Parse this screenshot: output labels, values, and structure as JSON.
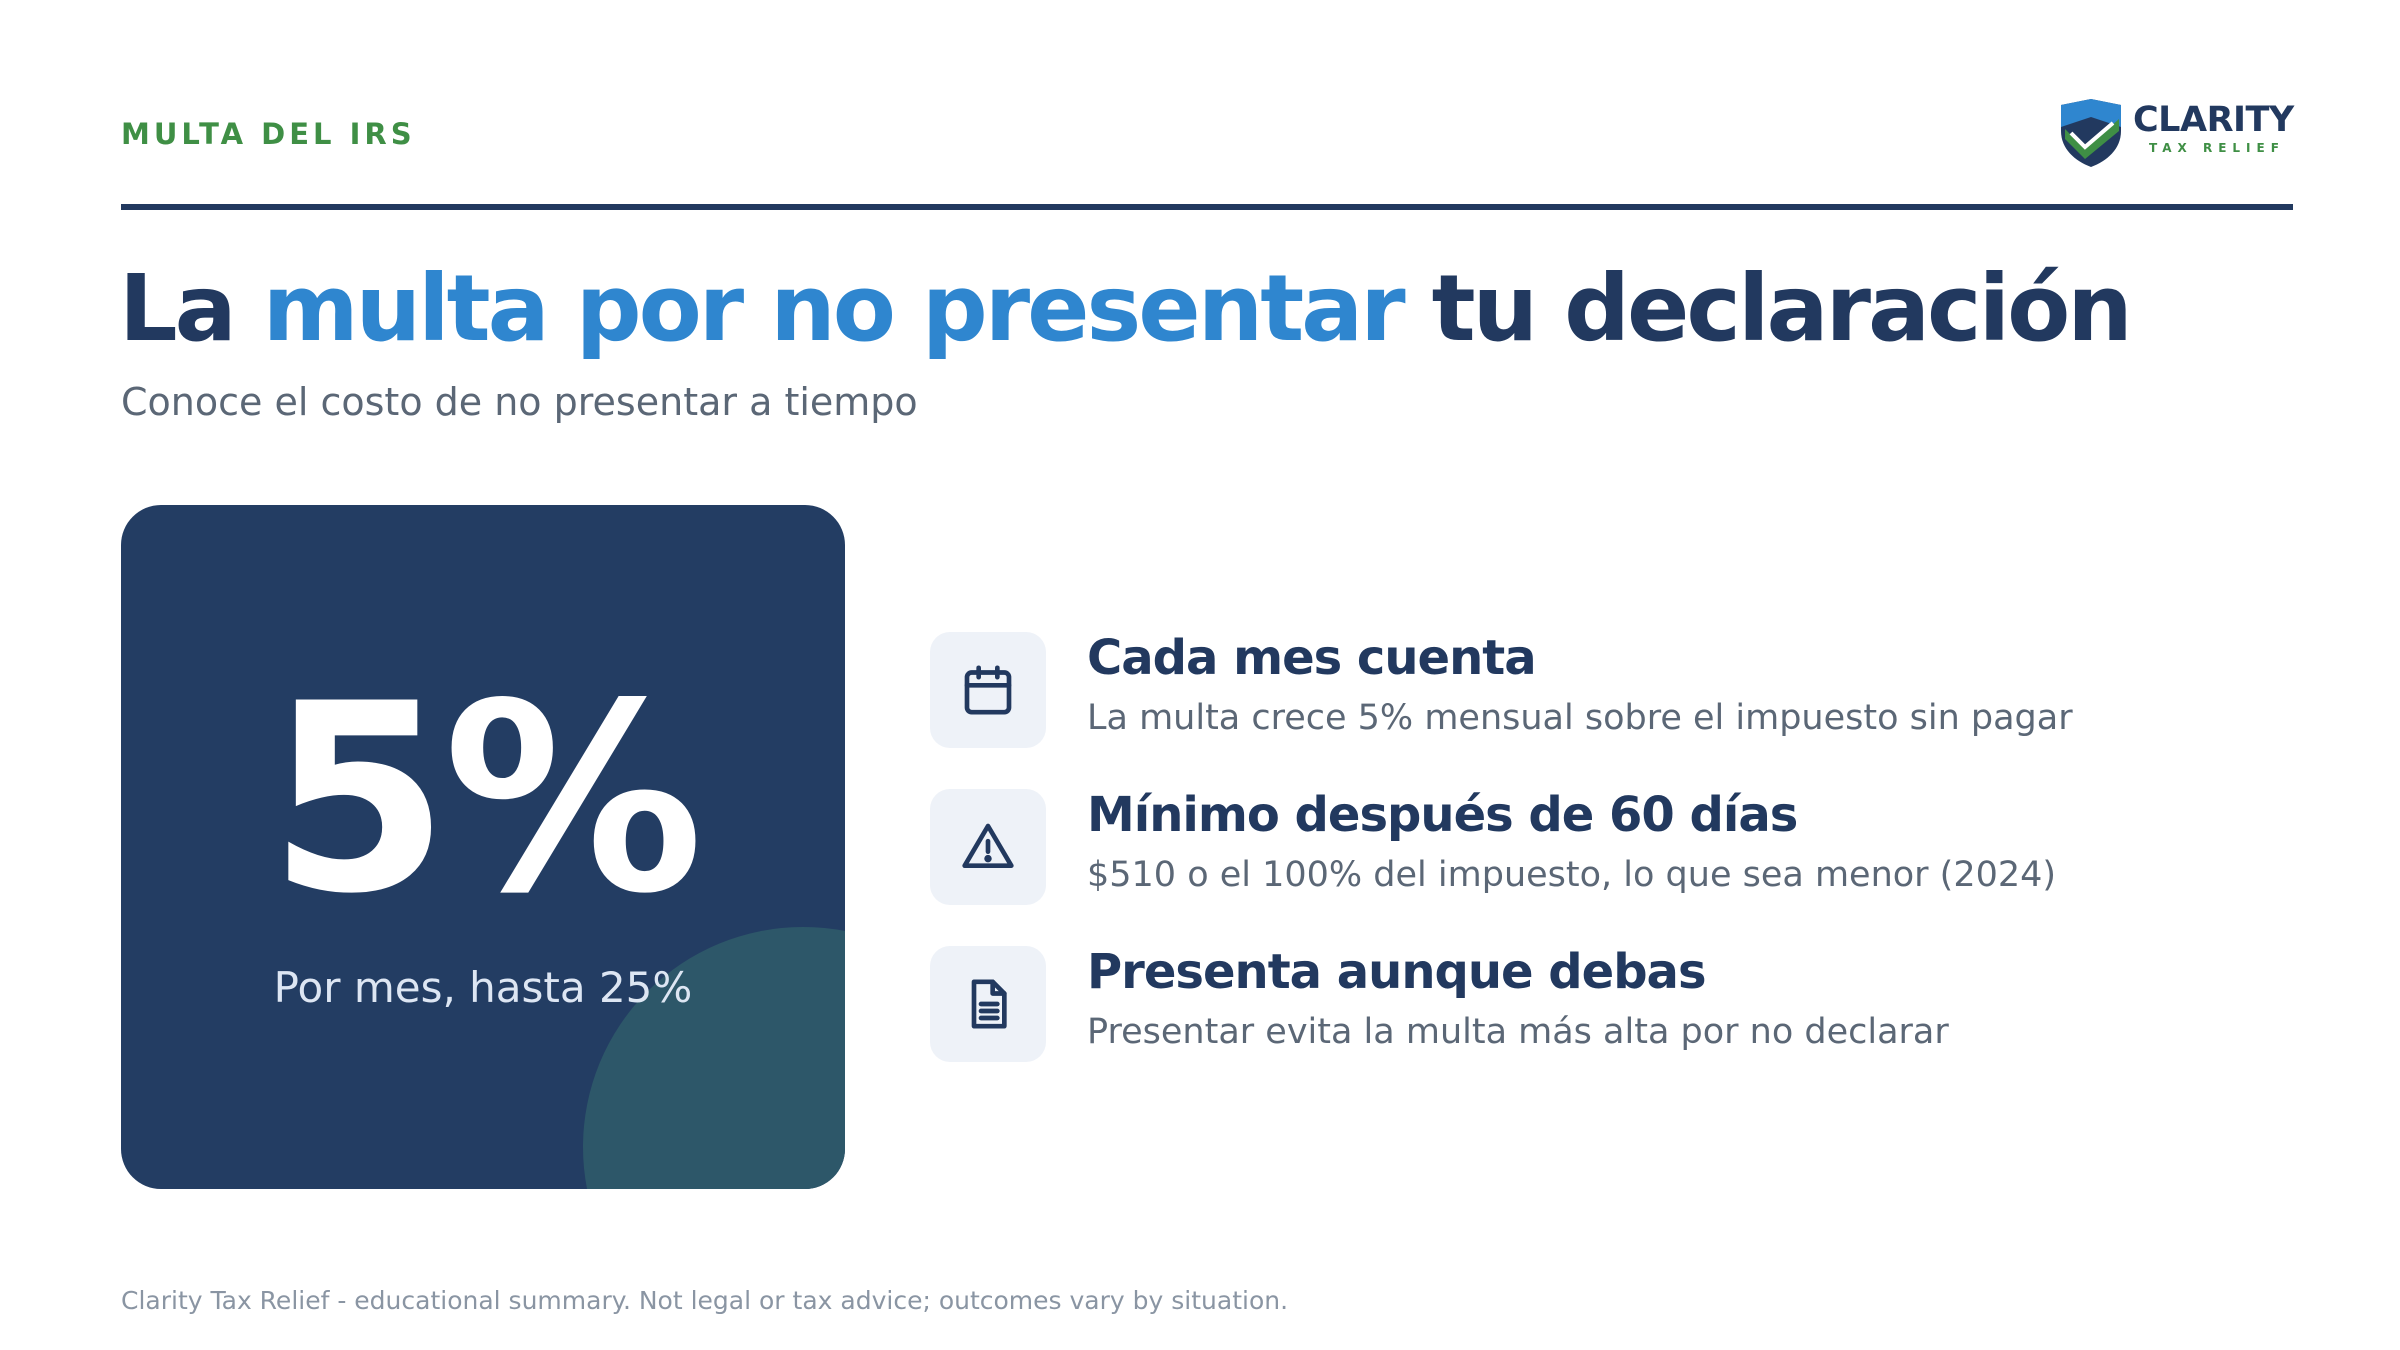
{
  "header": {
    "eyebrow": "MULTA DEL IRS",
    "logo": {
      "name": "CLARITY",
      "subtitle": "TAX RELIEF"
    }
  },
  "headline": {
    "part1": "La",
    "accent": "multa por no presentar",
    "part2": "tu declaración"
  },
  "subtitle": "Conoce el costo de no presentar a tiempo",
  "stat": {
    "value": "5%",
    "caption": "Por mes, hasta 25%"
  },
  "features": [
    {
      "icon": "calendar-icon",
      "title": "Cada mes cuenta",
      "description": "La multa crece 5% mensual sobre el impuesto sin pagar"
    },
    {
      "icon": "warning-icon",
      "title": "Mínimo después de 60 días",
      "description": "$510 o el 100% del impuesto, lo que sea menor (2024)"
    },
    {
      "icon": "document-icon",
      "title": "Presenta aunque debas",
      "description": "Presentar evita la multa más alta por no declarar"
    }
  ],
  "footer": "Clarity Tax Relief - educational summary. Not legal or tax advice; outcomes vary by situation.",
  "colors": {
    "navy": "#22395f",
    "accent_blue": "#2f86cf",
    "brand_green": "#3f8f45",
    "card_bg": "#233d63",
    "muted_text": "#5b6776"
  }
}
